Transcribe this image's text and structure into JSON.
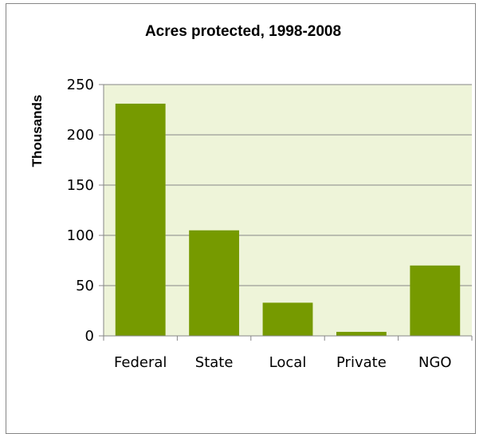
{
  "chart_data": {
    "type": "bar",
    "title": "Acres protected, 1998-2008",
    "ylabel": "Thousands",
    "xlabel": "",
    "categories": [
      "Federal",
      "State",
      "Local",
      "Private",
      "NGO"
    ],
    "values": [
      231,
      105,
      33,
      4,
      70
    ],
    "ylim": [
      0,
      250
    ],
    "yticks": [
      0,
      50,
      100,
      150,
      200,
      250
    ],
    "grid": true,
    "legend": "none",
    "colors": {
      "bar": "#769A00",
      "plot_area": "#EEF4D9",
      "gridline": "#868686"
    }
  }
}
